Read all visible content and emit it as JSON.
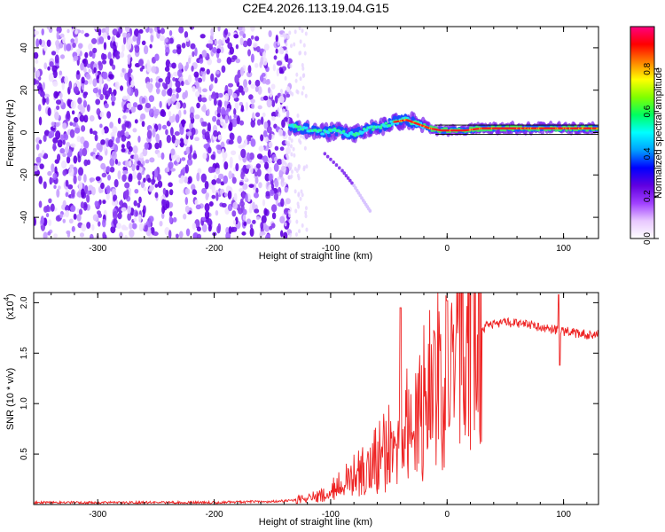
{
  "title": "C2E4.2026.113.19.04.G15",
  "chart_data": [
    {
      "type": "heatmap",
      "panel": "top",
      "xlabel": "Height of straight line (km)",
      "ylabel": "Frequency (Hz)",
      "xlim": [
        -355,
        130
      ],
      "ylim": [
        -50,
        50
      ],
      "xticks": [
        -300,
        -200,
        -100,
        0,
        100
      ],
      "yticks": [
        40,
        20,
        0,
        -20,
        -40
      ],
      "xtick_labels": [
        "-300",
        "-200",
        "-100",
        "0",
        "100"
      ],
      "ytick_labels": [
        "40",
        "20",
        "0",
        "-20",
        "-40"
      ],
      "colorbar": {
        "label": "Normalized spectral amplitude",
        "range": [
          0,
          1
        ],
        "ticks": [
          0.0,
          0.2,
          0.4,
          0.6,
          0.8
        ],
        "tick_labels": [
          "0.0",
          "0.2",
          "0.4",
          "0.6",
          "0.8"
        ],
        "colors": [
          "#ffffff",
          "#e8c8ff",
          "#a040ff",
          "#6000e0",
          "#0000ff",
          "#00a0ff",
          "#00ffff",
          "#00ff60",
          "#80ff00",
          "#ffff00",
          "#ff8000",
          "#ff0000",
          "#ff0080"
        ]
      },
      "noise_region": [
        -355,
        -135
      ],
      "signal_track": [
        [
          -135,
          3
        ],
        [
          -125,
          2
        ],
        [
          -115,
          1
        ],
        [
          -105,
          0
        ],
        [
          -95,
          1
        ],
        [
          -85,
          -1
        ],
        [
          -75,
          0
        ],
        [
          -65,
          2
        ],
        [
          -55,
          3
        ],
        [
          -45,
          5
        ],
        [
          -35,
          6
        ],
        [
          -25,
          4
        ],
        [
          -15,
          2
        ],
        [
          -5,
          1
        ],
        [
          5,
          1
        ],
        [
          15,
          1
        ],
        [
          30,
          2
        ],
        [
          50,
          2
        ],
        [
          70,
          2
        ],
        [
          90,
          2
        ],
        [
          110,
          2
        ],
        [
          130,
          2
        ]
      ],
      "mirror_track": [
        [
          -105,
          -10
        ],
        [
          -90,
          -18
        ],
        [
          -80,
          -25
        ],
        [
          -72,
          -32
        ],
        [
          -65,
          -38
        ]
      ]
    },
    {
      "type": "line",
      "panel": "bottom",
      "xlabel": "Height of straight line (km)",
      "ylabel": "SNR (10 * v/v)",
      "scale_label": "(x10",
      "scale_exp": "4",
      "xlim": [
        -355,
        130
      ],
      "ylim": [
        0,
        2.1
      ],
      "xticks": [
        -300,
        -200,
        -100,
        0,
        100
      ],
      "yticks": [
        0.5,
        1.0,
        1.5,
        2.0
      ],
      "xtick_labels": [
        "-300",
        "-200",
        "-100",
        "0",
        "100"
      ],
      "ytick_labels": [
        "0.5",
        "1.0",
        "1.5",
        "2.0"
      ],
      "series": [
        {
          "name": "SNR",
          "color": "#ee2222",
          "x": [
            -355,
            -300,
            -250,
            -200,
            -150,
            -120,
            -110,
            -100,
            -90,
            -80,
            -70,
            -60,
            -50,
            -40,
            -30,
            -20,
            -10,
            0,
            10,
            20,
            30,
            40,
            50,
            60,
            70,
            80,
            90,
            95,
            100,
            110,
            120,
            130
          ],
          "y": [
            0.02,
            0.02,
            0.02,
            0.02,
            0.03,
            0.05,
            0.08,
            0.12,
            0.18,
            0.25,
            0.3,
            0.4,
            0.5,
            0.6,
            0.75,
            0.9,
            1.05,
            1.2,
            1.5,
            1.65,
            1.75,
            1.78,
            1.8,
            1.8,
            1.78,
            1.76,
            1.74,
            1.72,
            1.72,
            1.7,
            1.68,
            1.68
          ]
        }
      ],
      "peaks": [
        [
          0,
          2.02
        ],
        [
          96,
          2.08
        ],
        [
          -40,
          1.95
        ]
      ]
    }
  ]
}
